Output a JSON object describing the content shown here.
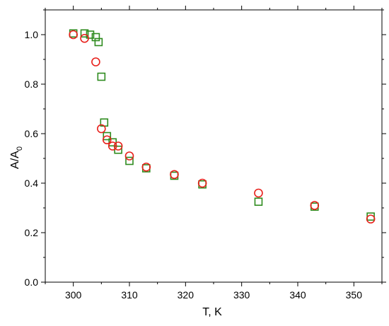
{
  "chart_data": {
    "type": "scatter",
    "title": "",
    "xlabel": "T, K",
    "ylabel_main": "A/A",
    "ylabel_sub": "0",
    "xlim": [
      295,
      355
    ],
    "ylim": [
      0.0,
      1.1
    ],
    "xticks": [
      300,
      310,
      320,
      330,
      340,
      350
    ],
    "xtick_labels": [
      "300",
      "310",
      "320",
      "330",
      "340",
      "350"
    ],
    "yticks": [
      0.0,
      0.2,
      0.4,
      0.6,
      0.8,
      1.0
    ],
    "ytick_labels": [
      "0.0",
      "0.2",
      "0.4",
      "0.6",
      "0.8",
      "1.0"
    ],
    "grid": false,
    "legend": "none",
    "series": [
      {
        "marker": "square",
        "color": "#2e8b1e",
        "points": [
          {
            "x": 300.0,
            "y": 1.005
          },
          {
            "x": 302.0,
            "y": 1.005
          },
          {
            "x": 303.0,
            "y": 1.0
          },
          {
            "x": 304.0,
            "y": 0.99
          },
          {
            "x": 304.5,
            "y": 0.97
          },
          {
            "x": 305.0,
            "y": 0.83
          },
          {
            "x": 305.5,
            "y": 0.645
          },
          {
            "x": 306.0,
            "y": 0.59
          },
          {
            "x": 307.0,
            "y": 0.565
          },
          {
            "x": 308.0,
            "y": 0.535
          },
          {
            "x": 310.0,
            "y": 0.49
          },
          {
            "x": 313.0,
            "y": 0.46
          },
          {
            "x": 318.0,
            "y": 0.43
          },
          {
            "x": 323.0,
            "y": 0.395
          },
          {
            "x": 333.0,
            "y": 0.325
          },
          {
            "x": 343.0,
            "y": 0.305
          },
          {
            "x": 353.0,
            "y": 0.265
          }
        ]
      },
      {
        "marker": "circle",
        "color": "#e8201b",
        "points": [
          {
            "x": 300.0,
            "y": 1.0
          },
          {
            "x": 302.0,
            "y": 0.985
          },
          {
            "x": 304.0,
            "y": 0.89
          },
          {
            "x": 305.0,
            "y": 0.62
          },
          {
            "x": 306.0,
            "y": 0.575
          },
          {
            "x": 307.0,
            "y": 0.55
          },
          {
            "x": 308.0,
            "y": 0.55
          },
          {
            "x": 310.0,
            "y": 0.51
          },
          {
            "x": 313.0,
            "y": 0.465
          },
          {
            "x": 318.0,
            "y": 0.435
          },
          {
            "x": 323.0,
            "y": 0.4
          },
          {
            "x": 333.0,
            "y": 0.36
          },
          {
            "x": 343.0,
            "y": 0.31
          },
          {
            "x": 353.0,
            "y": 0.255
          }
        ]
      }
    ]
  }
}
